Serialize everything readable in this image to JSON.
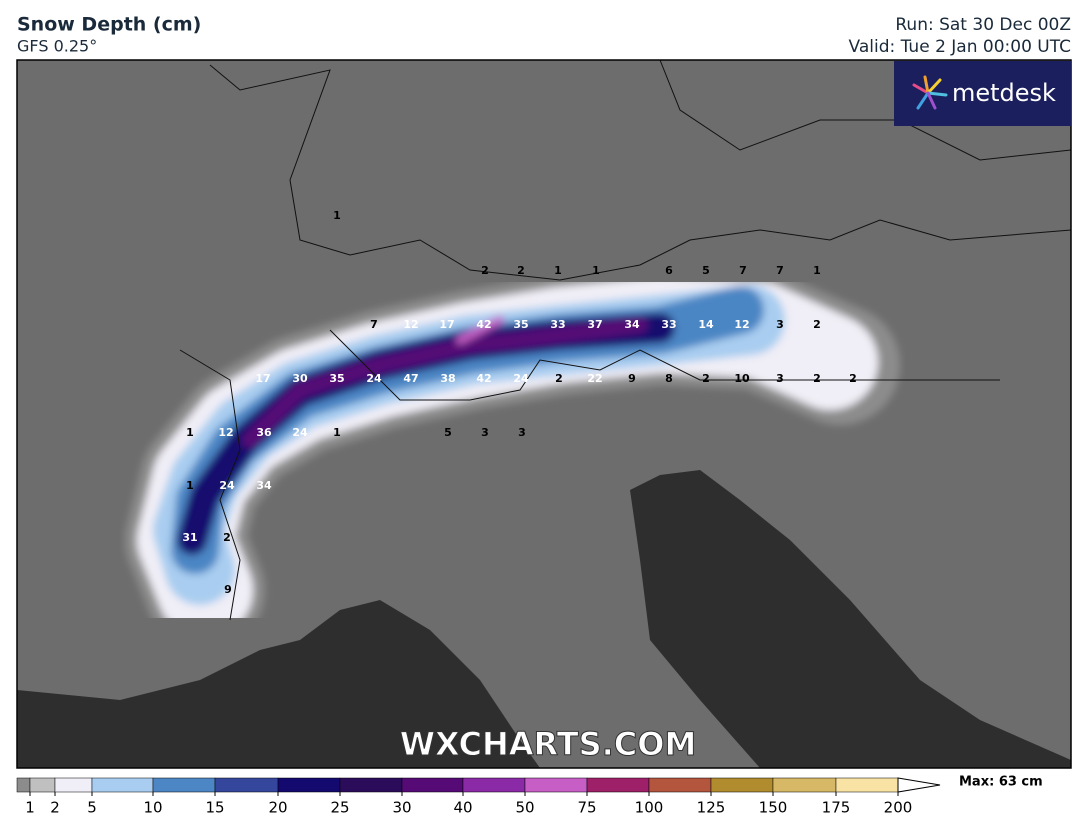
{
  "header": {
    "title": "Snow Depth (cm)",
    "model": "GFS 0.25°",
    "run": "Run: Sat 30 Dec 00Z",
    "valid": "Valid: Tue 2 Jan 00:00 UTC"
  },
  "logo": "metdesk",
  "watermark": "WXCHARTS.COM",
  "point_labels": [
    1,
    2,
    2,
    1,
    1,
    6,
    5,
    7,
    7,
    1,
    7,
    12,
    17,
    42,
    35,
    33,
    37,
    34,
    33,
    14,
    12,
    3,
    2,
    17,
    30,
    35,
    24,
    47,
    38,
    42,
    24,
    2,
    22,
    9,
    8,
    2,
    10,
    3,
    2,
    2,
    1,
    12,
    36,
    24,
    1,
    5,
    3,
    3,
    1,
    24,
    34,
    31,
    2,
    9
  ],
  "colorbar": {
    "ticks": [
      1,
      2,
      5,
      10,
      15,
      20,
      25,
      30,
      40,
      50,
      75,
      100,
      125,
      150,
      175,
      200
    ],
    "colors": [
      "#8c8c8c",
      "#c0c0c0",
      "#f0eef6",
      "#a9cdf0",
      "#4c86c4",
      "#34479c",
      "#14096e",
      "#2a0c5a",
      "#560a76",
      "#8a2aa6",
      "#c65ec6",
      "#9e2068",
      "#b4563e",
      "#b08c2e",
      "#d6b866",
      "#f8e2a4",
      "#ffffff"
    ],
    "max_label": "Max: 63 cm"
  }
}
